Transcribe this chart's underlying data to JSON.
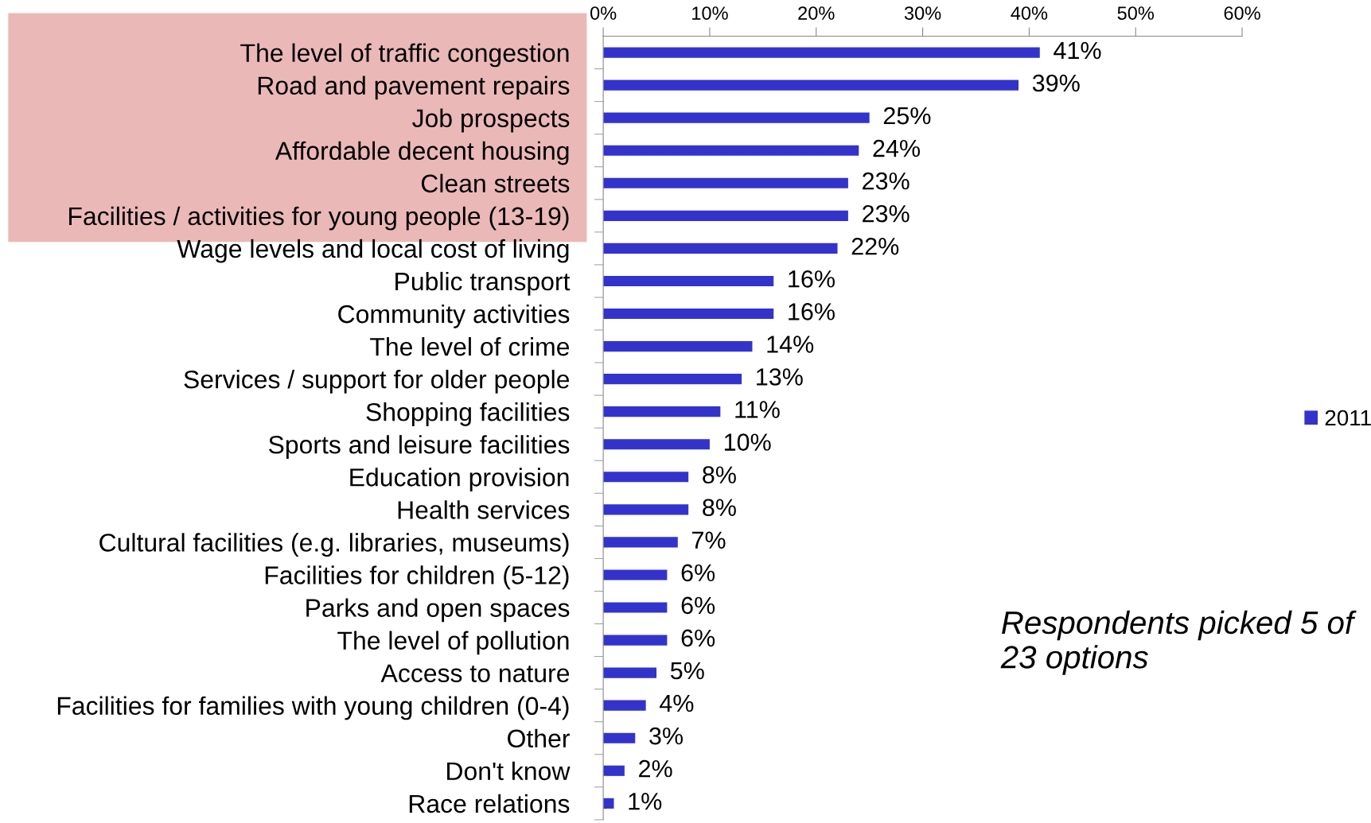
{
  "chart_data": {
    "type": "bar",
    "orientation": "horizontal",
    "categories": [
      "The level of traffic congestion",
      "Road and pavement repairs",
      "Job prospects",
      "Affordable decent housing",
      "Clean streets",
      "Facilities / activities for young people (13-19)",
      "Wage levels and local cost of living",
      "Public transport",
      "Community activities",
      "The level of crime",
      "Services / support for older people",
      "Shopping facilities",
      "Sports and leisure facilities",
      "Education provision",
      "Health services",
      "Cultural facilities (e.g. libraries, museums)",
      "Facilities for children (5-12)",
      "Parks and open spaces",
      "The level of pollution",
      "Access to nature",
      "Facilities for families with young children (0-4)",
      "Other",
      "Don't know",
      "Race relations"
    ],
    "series": [
      {
        "name": "2011",
        "color": "#3333cc",
        "values": [
          41,
          39,
          25,
          24,
          23,
          23,
          22,
          16,
          16,
          14,
          13,
          11,
          10,
          8,
          8,
          7,
          6,
          6,
          6,
          5,
          4,
          3,
          2,
          1
        ],
        "value_labels": [
          "41%",
          "39%",
          "25%",
          "24%",
          "23%",
          "23%",
          "22%",
          "16%",
          "16%",
          "14%",
          "13%",
          "11%",
          "10%",
          "8%",
          "8%",
          "7%",
          "6%",
          "6%",
          "6%",
          "5%",
          "4%",
          "3%",
          "2%",
          "1%"
        ]
      }
    ],
    "xlim": [
      0,
      60
    ],
    "xticks": [
      {
        "value": 0,
        "label": "0%"
      },
      {
        "value": 10,
        "label": "10%"
      },
      {
        "value": 20,
        "label": "20%"
      },
      {
        "value": 30,
        "label": "30%"
      },
      {
        "value": 40,
        "label": "40%"
      },
      {
        "value": 50,
        "label": "50%"
      },
      {
        "value": 60,
        "label": "60%"
      }
    ],
    "grid": false,
    "legend": "right",
    "annotations": [
      "Respondents picked 5 of 23 options"
    ]
  }
}
